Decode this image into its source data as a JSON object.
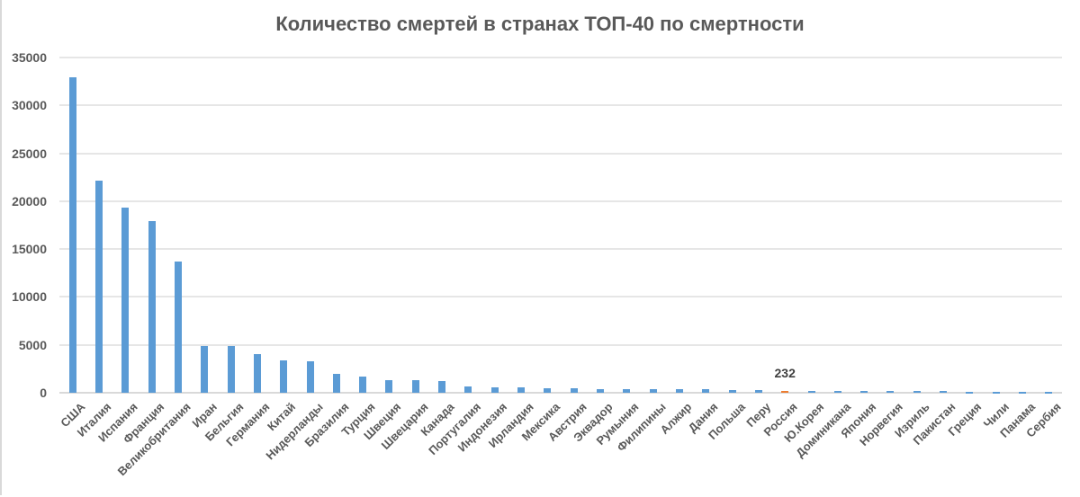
{
  "chart_data": {
    "type": "bar",
    "title": "Количество смертей в странах ТОП-40 по смертности",
    "xlabel": "",
    "ylabel": "",
    "ylim": [
      0,
      35000
    ],
    "yticks": [
      0,
      5000,
      10000,
      15000,
      20000,
      25000,
      30000,
      35000
    ],
    "grid": true,
    "legend": null,
    "categories": [
      "США",
      "Италия",
      "Испания",
      "Франция",
      "Великобритания",
      "Иран",
      "Бельгия",
      "Германия",
      "Китай",
      "Нидерланды",
      "Бразилия",
      "Турция",
      "Швеция",
      "Швецария",
      "Канада",
      "Португалия",
      "Индонезия",
      "Ирландия",
      "Мексика",
      "Австрия",
      "Эквадор",
      "Румыния",
      "Филипины",
      "Алжир",
      "Дания",
      "Польша",
      "Перу",
      "Россия",
      "Ю.Корея",
      "Доминикана",
      "Япония",
      "Норвегия",
      "Изриль",
      "Пакистан",
      "Греция",
      "Чили",
      "Панама",
      "Сербия"
    ],
    "values": [
      32916,
      22170,
      19315,
      17920,
      13729,
      4869,
      4857,
      4052,
      3342,
      3315,
      1924,
      1643,
      1333,
      1281,
      1250,
      629,
      535,
      530,
      486,
      431,
      421,
      392,
      362,
      355,
      346,
      314,
      274,
      232,
      230,
      196,
      190,
      150,
      151,
      143,
      116,
      105,
      103,
      99
    ],
    "highlight": {
      "category": "Россия",
      "value": 232,
      "label": "232",
      "color": "#ed7d31"
    },
    "bar_color": "#5b9bd5"
  }
}
